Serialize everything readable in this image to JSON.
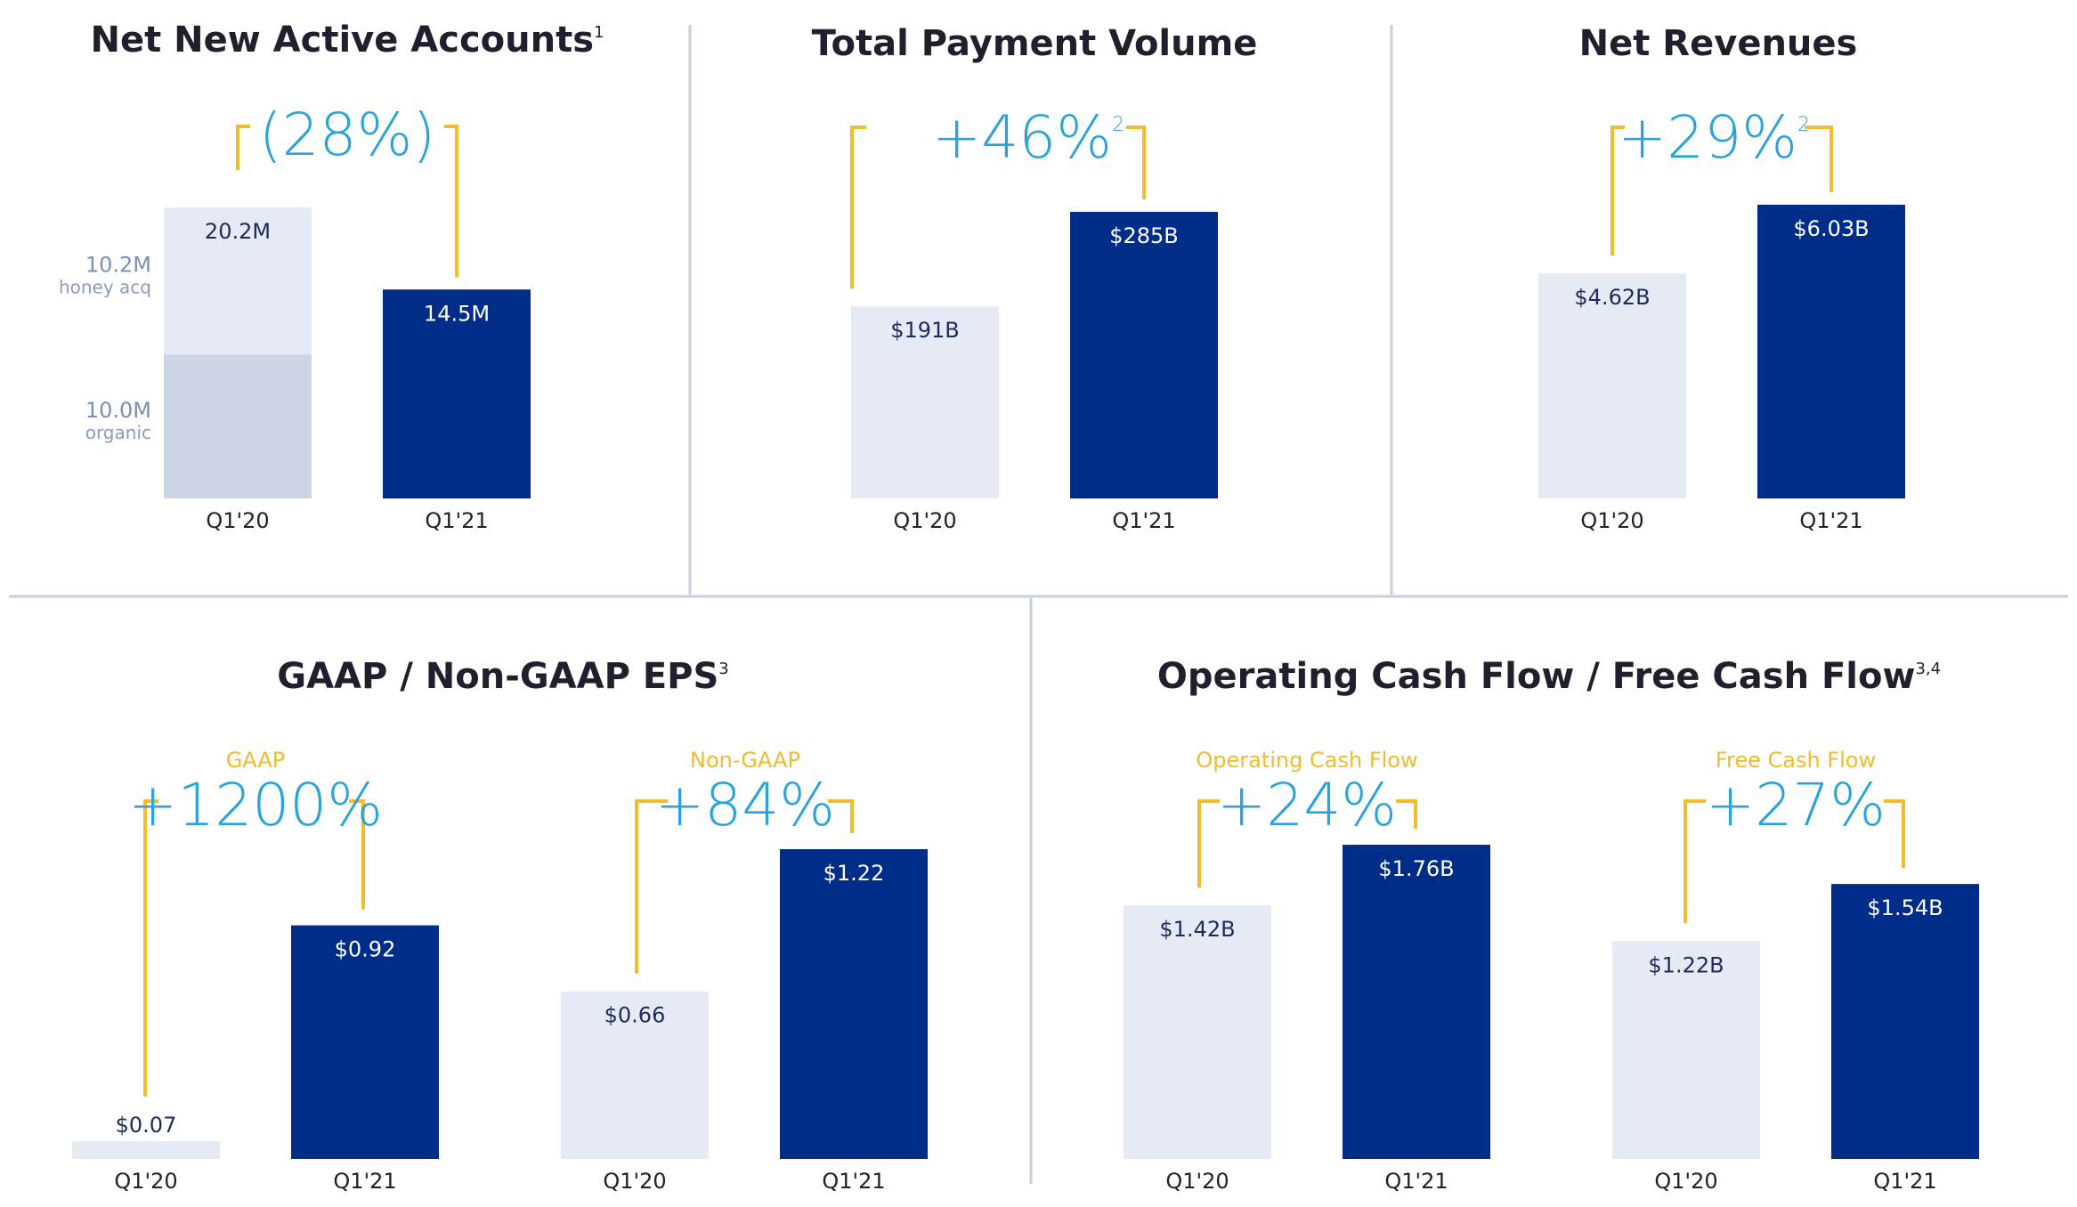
{
  "colors": {
    "bar_prior": "#e6eaf4",
    "bar_prior_segment": "#ccd4e5",
    "bar_current": "#002d87",
    "bracket": "#f4bc2c",
    "pct_text": "#2aa3dc",
    "divider": "#c9cedb"
  },
  "chart_data": [
    {
      "type": "bar",
      "title": "Net New Active Accounts",
      "title_sup": "1",
      "change": "(28%)",
      "change_sup": "",
      "categories": [
        "Q1'20",
        "Q1'21"
      ],
      "series": [
        {
          "name": "organic",
          "values": [
            10.0,
            0
          ]
        },
        {
          "name": "honey acq",
          "values": [
            10.2,
            0
          ]
        },
        {
          "values": [
            0,
            14.5
          ]
        }
      ],
      "totals": [
        20.2,
        14.5
      ],
      "value_labels": [
        "20.2M",
        "14.5M"
      ],
      "segment_labels": [
        {
          "value": "10.2M",
          "name": "honey acq"
        },
        {
          "value": "10.0M",
          "name": "organic"
        }
      ],
      "ylim": [
        0,
        20.2
      ]
    },
    {
      "type": "bar",
      "title": "Total Payment Volume",
      "title_sup": "",
      "change": "+46%",
      "change_sup": "2",
      "categories": [
        "Q1'20",
        "Q1'21"
      ],
      "values": [
        191,
        285
      ],
      "value_labels": [
        "$191B",
        "$285B"
      ],
      "ylim": [
        0,
        285
      ]
    },
    {
      "type": "bar",
      "title": "Net Revenues",
      "title_sup": "",
      "change": "+29%",
      "change_sup": "2",
      "categories": [
        "Q1'20",
        "Q1'21"
      ],
      "values": [
        4.62,
        6.03
      ],
      "value_labels": [
        "$4.62B",
        "$6.03B"
      ],
      "ylim": [
        0,
        6.03
      ]
    },
    {
      "type": "bar",
      "title": "GAAP / Non-GAAP EPS",
      "title_sup": "3",
      "groups": [
        {
          "name": "GAAP",
          "change": "+1200%",
          "categories": [
            "Q1'20",
            "Q1'21"
          ],
          "values": [
            0.07,
            0.92
          ],
          "value_labels": [
            "$0.07",
            "$0.92"
          ]
        },
        {
          "name": "Non-GAAP",
          "change": "+84%",
          "categories": [
            "Q1'20",
            "Q1'21"
          ],
          "values": [
            0.66,
            1.22
          ],
          "value_labels": [
            "$0.66",
            "$1.22"
          ]
        }
      ]
    },
    {
      "type": "bar",
      "title": "Operating Cash Flow / Free Cash Flow",
      "title_sup": "3,4",
      "groups": [
        {
          "name": "Operating Cash Flow",
          "change": "+24%",
          "categories": [
            "Q1'20",
            "Q1'21"
          ],
          "values": [
            1.42,
            1.76
          ],
          "value_labels": [
            "$1.42B",
            "$1.76B"
          ]
        },
        {
          "name": "Free Cash Flow",
          "change": "+27%",
          "categories": [
            "Q1'20",
            "Q1'21"
          ],
          "values": [
            1.22,
            1.54
          ],
          "value_labels": [
            "$1.22B",
            "$1.54B"
          ]
        }
      ]
    }
  ]
}
